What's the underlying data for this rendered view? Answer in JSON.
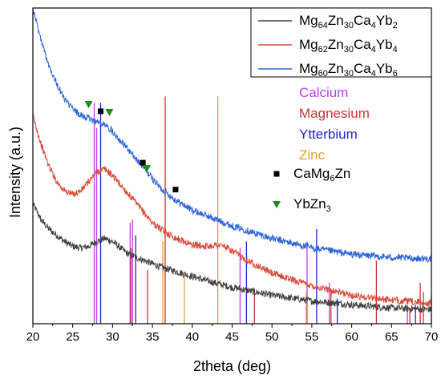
{
  "chart_data": {
    "type": "line",
    "xlabel": "2theta (deg)",
    "ylabel": "Intensity (a.u.)",
    "xlim": [
      20,
      70
    ],
    "ylim": [
      0,
      1
    ],
    "xticks": [
      "20",
      "25",
      "30",
      "35",
      "40",
      "45",
      "50",
      "55",
      "60",
      "65",
      "70"
    ],
    "yticks_shown": false,
    "legend_position": "top-right",
    "series": [
      {
        "name": "Mg64Zn30Ca4Yb2",
        "label_parts": [
          [
            "Mg",
            ""
          ],
          [
            "64",
            "sub"
          ],
          [
            "Zn",
            ""
          ],
          [
            "30",
            "sub"
          ],
          [
            "Ca",
            ""
          ],
          [
            "4",
            "sub"
          ],
          [
            "Yb",
            ""
          ],
          [
            "2",
            "sub"
          ]
        ],
        "color": "#404040",
        "x": [
          20,
          21,
          22,
          23,
          24,
          25,
          26,
          27,
          28,
          29,
          30,
          31,
          32,
          34,
          36,
          38,
          40,
          42,
          45,
          50,
          55,
          60,
          65,
          70
        ],
        "y": [
          0.38,
          0.33,
          0.3,
          0.28,
          0.26,
          0.245,
          0.24,
          0.245,
          0.26,
          0.27,
          0.26,
          0.24,
          0.22,
          0.2,
          0.18,
          0.165,
          0.15,
          0.135,
          0.115,
          0.09,
          0.072,
          0.06,
          0.05,
          0.045
        ]
      },
      {
        "name": "Mg62Zn30Ca4Yb4",
        "label_parts": [
          [
            "Mg",
            ""
          ],
          [
            "62",
            "sub"
          ],
          [
            "Zn",
            ""
          ],
          [
            "30",
            "sub"
          ],
          [
            "Ca",
            ""
          ],
          [
            "4",
            "sub"
          ],
          [
            "Yb",
            ""
          ],
          [
            "4",
            "sub"
          ]
        ],
        "color": "#d94a3a",
        "x": [
          20,
          21,
          22,
          23,
          24,
          25,
          26,
          27,
          28,
          29,
          30,
          31,
          32,
          33,
          34,
          35,
          36,
          38,
          40,
          42,
          43,
          44,
          45,
          47,
          50,
          55,
          60,
          65,
          70
        ],
        "y": [
          0.66,
          0.57,
          0.5,
          0.45,
          0.42,
          0.41,
          0.42,
          0.45,
          0.48,
          0.49,
          0.47,
          0.44,
          0.41,
          0.38,
          0.35,
          0.32,
          0.3,
          0.27,
          0.25,
          0.245,
          0.25,
          0.245,
          0.23,
          0.2,
          0.16,
          0.12,
          0.09,
          0.075,
          0.065
        ]
      },
      {
        "name": "Mg60Zn30Ca4Yb6",
        "label_parts": [
          [
            "Mg",
            ""
          ],
          [
            "60",
            "sub"
          ],
          [
            "Zn",
            ""
          ],
          [
            "30",
            "sub"
          ],
          [
            "Ca",
            ""
          ],
          [
            "4",
            "sub"
          ],
          [
            "Yb",
            ""
          ],
          [
            "6",
            "sub"
          ]
        ],
        "color": "#2e64d8",
        "x": [
          20,
          21,
          22,
          23,
          24,
          25,
          26,
          27,
          28,
          29,
          30,
          31,
          32,
          33,
          34,
          35,
          36,
          37,
          38,
          40,
          42,
          45,
          50,
          55,
          60,
          65,
          70
        ],
        "y": [
          1.0,
          0.9,
          0.82,
          0.76,
          0.71,
          0.68,
          0.66,
          0.65,
          0.64,
          0.63,
          0.61,
          0.58,
          0.55,
          0.52,
          0.49,
          0.46,
          0.43,
          0.41,
          0.39,
          0.36,
          0.34,
          0.31,
          0.27,
          0.24,
          0.22,
          0.21,
          0.205
        ]
      }
    ],
    "reference_peaks": [
      {
        "name": "Calcium",
        "color": "#c23fe0",
        "peaks": [
          [
            27.7,
            0.7
          ],
          [
            28.0,
            0.62
          ],
          [
            32.2,
            0.32
          ],
          [
            32.5,
            0.33
          ],
          [
            46.0,
            0.24
          ],
          [
            54.4,
            0.26
          ],
          [
            57.2,
            0.13
          ],
          [
            67.0,
            0.05
          ]
        ]
      },
      {
        "name": "Magnesium",
        "color": "#cc3333",
        "peaks": [
          [
            32.3,
            0.24
          ],
          [
            34.4,
            0.17
          ],
          [
            36.6,
            0.72
          ],
          [
            47.8,
            0.11
          ],
          [
            57.4,
            0.11
          ],
          [
            63.1,
            0.2
          ],
          [
            67.3,
            0.05
          ],
          [
            68.6,
            0.13
          ],
          [
            69.0,
            0.1
          ]
        ]
      },
      {
        "name": "Ytterbium",
        "color": "#2222cc",
        "peaks": [
          [
            28.5,
            0.7
          ],
          [
            32.9,
            0.28
          ],
          [
            46.8,
            0.26
          ],
          [
            55.6,
            0.3
          ],
          [
            58.2,
            0.08
          ],
          [
            68.0,
            0.06
          ]
        ]
      },
      {
        "name": "Zinc",
        "color": "#e0a030",
        "peaks": [
          [
            36.3,
            0.26
          ],
          [
            39.0,
            0.16
          ],
          [
            43.2,
            0.72
          ],
          [
            54.3,
            0.1
          ],
          [
            70.0,
            0.09
          ]
        ]
      }
    ],
    "markers": [
      {
        "name": "CaMg6Zn",
        "label_parts": [
          [
            "CaMg",
            ""
          ],
          [
            "6",
            "sub"
          ],
          [
            "Zn",
            ""
          ]
        ],
        "symbol": "square",
        "color": "#000000",
        "points": [
          [
            28.5,
            0.673
          ],
          [
            33.8,
            0.51
          ],
          [
            37.9,
            0.425
          ]
        ]
      },
      {
        "name": "YbZn3",
        "label_parts": [
          [
            "YbZn",
            ""
          ],
          [
            "3",
            "sub"
          ]
        ],
        "symbol": "triangle-down",
        "color": "#1e8a1e",
        "points": [
          [
            27.0,
            0.695
          ],
          [
            29.6,
            0.67
          ],
          [
            34.3,
            0.492
          ]
        ]
      }
    ]
  }
}
